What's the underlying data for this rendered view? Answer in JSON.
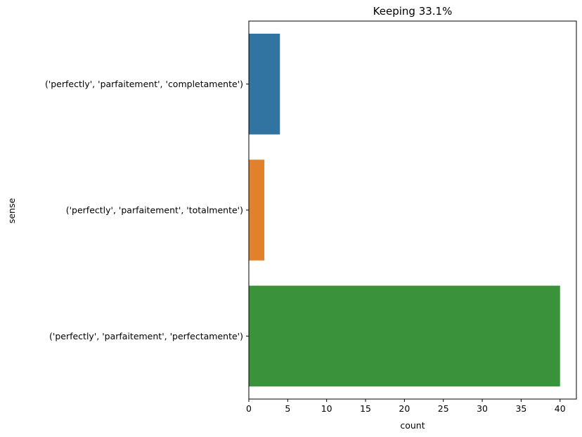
{
  "chart_data": {
    "type": "bar",
    "orientation": "horizontal",
    "title": "Keeping 33.1%",
    "xlabel": "count",
    "ylabel": "sense",
    "categories": [
      "('perfectly', 'parfaitement', 'completamente')",
      "('perfectly', 'parfaitement', 'totalmente')",
      "('perfectly', 'parfaitement', 'perfectamente')"
    ],
    "values": [
      4,
      2,
      40
    ],
    "colors": [
      "#3274a1",
      "#e1812c",
      "#3a923a"
    ],
    "xlim": [
      0,
      42.1
    ],
    "xticks": [
      0,
      5,
      10,
      15,
      20,
      25,
      30,
      35,
      40
    ],
    "grid": false,
    "legend": "none"
  }
}
